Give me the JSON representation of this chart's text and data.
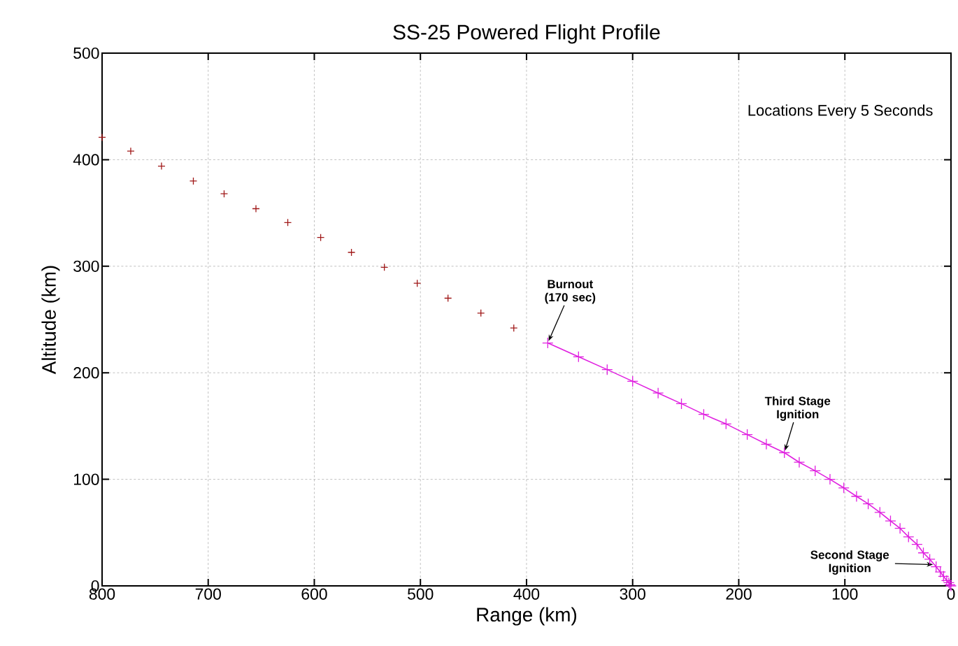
{
  "chart_data": {
    "type": "line",
    "title": "SS-25 Powered Flight Profile",
    "xlabel": "Range (km)",
    "ylabel": "Altitude (km)",
    "xlim": [
      800,
      0
    ],
    "ylim": [
      0,
      500
    ],
    "xticks": [
      800,
      700,
      600,
      500,
      400,
      300,
      200,
      100,
      0
    ],
    "yticks": [
      0,
      100,
      200,
      300,
      400,
      500
    ],
    "grid": true,
    "marker": "cross",
    "series": [
      {
        "type": "scatter",
        "color": "#a01818",
        "x": [
          800,
          773,
          744,
          714,
          685,
          655,
          625,
          594,
          565,
          534,
          503,
          474,
          443,
          412
        ],
        "values": [
          421,
          408,
          394,
          380,
          368,
          354,
          341,
          327,
          313,
          299,
          284,
          270,
          256,
          242
        ]
      },
      {
        "type": "line",
        "color": "#e020e0",
        "x": [
          380,
          351,
          324,
          300,
          276,
          254,
          233,
          212,
          192,
          174,
          157,
          143,
          128,
          114,
          101,
          89,
          78,
          67,
          57,
          48,
          40,
          32,
          26,
          20,
          14,
          10,
          7,
          4,
          2,
          1,
          0
        ],
        "values": [
          228,
          215,
          203,
          192,
          181,
          171,
          161,
          152,
          142,
          133,
          125,
          116,
          108,
          100,
          92,
          84,
          77,
          69,
          61,
          54,
          46,
          39,
          31,
          25,
          18,
          13,
          9,
          5,
          3,
          1,
          0
        ]
      }
    ],
    "annotations": [
      "Locations Every 5 Seconds",
      {
        "text": "Burnout (170 sec)",
        "x": 380,
        "y": 228
      },
      {
        "text": "Third Stage Ignition",
        "x": 157,
        "y": 125
      },
      {
        "text": "Second Stage Ignition",
        "x": 15,
        "y": 20
      }
    ]
  }
}
